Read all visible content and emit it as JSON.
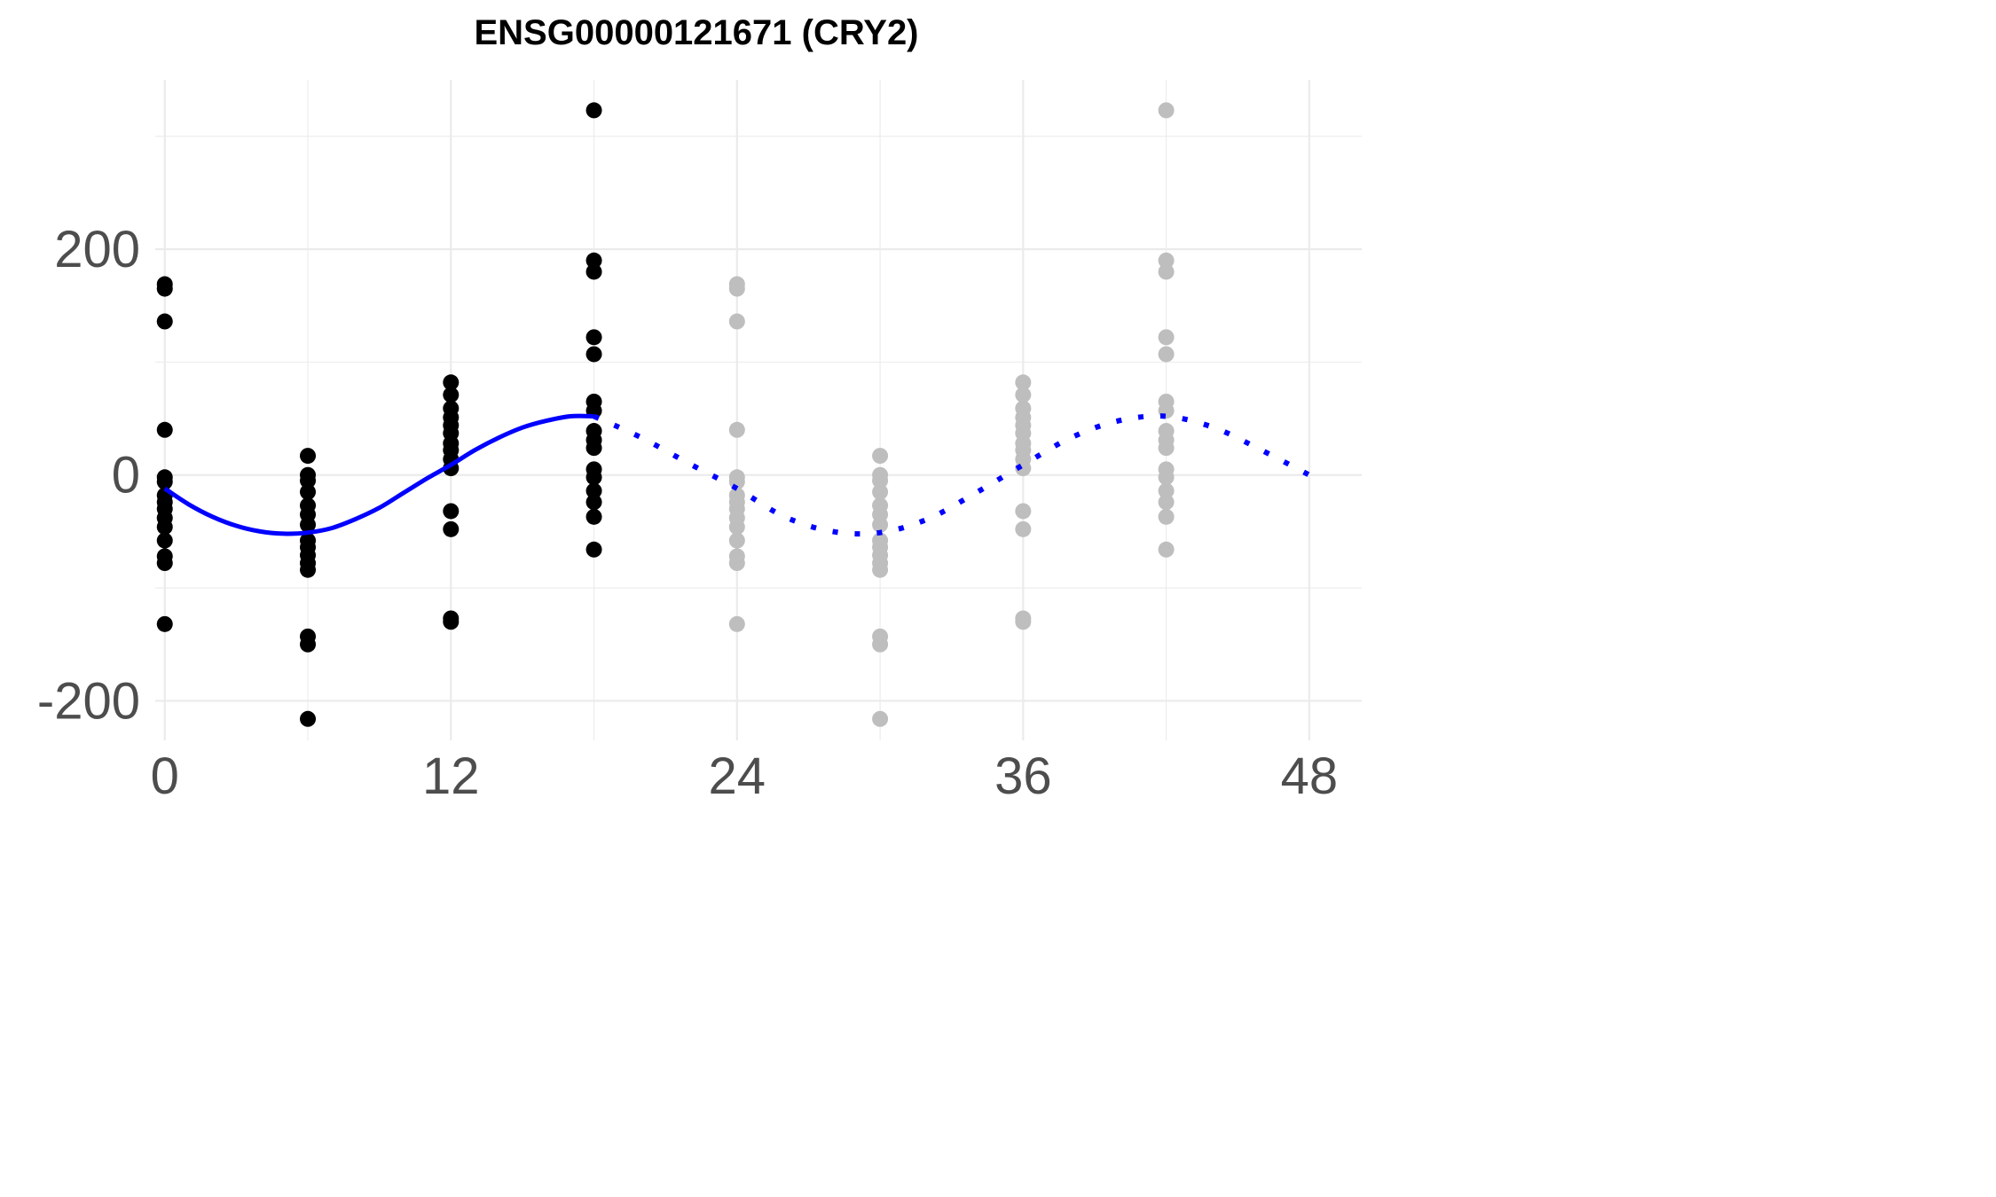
{
  "chart_data": {
    "type": "scatter",
    "title": "ENSG00000121671 (CRY2)",
    "xlabel": "",
    "ylabel": "",
    "xlim": [
      -0.4,
      50.2
    ],
    "ylim": [
      -235,
      350
    ],
    "x_ticks": [
      0,
      12,
      24,
      36,
      48
    ],
    "x_tick_labels": [
      "0",
      "12",
      "24",
      "36",
      "48"
    ],
    "y_ticks": [
      -200,
      0,
      200
    ],
    "y_tick_labels": [
      "-200",
      "0",
      "200"
    ],
    "x_minor_ticks": [
      6,
      18,
      30,
      42
    ],
    "y_minor_ticks": [
      -100,
      100,
      300
    ],
    "grid": true,
    "colors": {
      "observed": "#000000",
      "repeated": "#bebebe",
      "fit": "#0000ff"
    },
    "observed_points": [
      {
        "x": 0,
        "y": 169
      },
      {
        "x": 0,
        "y": 165
      },
      {
        "x": 0,
        "y": 136
      },
      {
        "x": 0,
        "y": 40
      },
      {
        "x": 0,
        "y": -2
      },
      {
        "x": 0,
        "y": -6
      },
      {
        "x": 0,
        "y": -18
      },
      {
        "x": 0,
        "y": -24
      },
      {
        "x": 0,
        "y": -30
      },
      {
        "x": 0,
        "y": -38
      },
      {
        "x": 0,
        "y": -46
      },
      {
        "x": 0,
        "y": -58
      },
      {
        "x": 0,
        "y": -72
      },
      {
        "x": 0,
        "y": -78
      },
      {
        "x": 0,
        "y": -132
      },
      {
        "x": 6,
        "y": 17
      },
      {
        "x": 6,
        "y": 0
      },
      {
        "x": 6,
        "y": -5
      },
      {
        "x": 6,
        "y": -15
      },
      {
        "x": 6,
        "y": -27
      },
      {
        "x": 6,
        "y": -35
      },
      {
        "x": 6,
        "y": -44
      },
      {
        "x": 6,
        "y": -58
      },
      {
        "x": 6,
        "y": -64
      },
      {
        "x": 6,
        "y": -71
      },
      {
        "x": 6,
        "y": -78
      },
      {
        "x": 6,
        "y": -84
      },
      {
        "x": 6,
        "y": -143
      },
      {
        "x": 6,
        "y": -150
      },
      {
        "x": 6,
        "y": -216
      },
      {
        "x": 12,
        "y": 82
      },
      {
        "x": 12,
        "y": 71
      },
      {
        "x": 12,
        "y": 59
      },
      {
        "x": 12,
        "y": 51
      },
      {
        "x": 12,
        "y": 44
      },
      {
        "x": 12,
        "y": 37
      },
      {
        "x": 12,
        "y": 28
      },
      {
        "x": 12,
        "y": 22
      },
      {
        "x": 12,
        "y": 14
      },
      {
        "x": 12,
        "y": 6
      },
      {
        "x": 12,
        "y": -32
      },
      {
        "x": 12,
        "y": -48
      },
      {
        "x": 12,
        "y": -127
      },
      {
        "x": 12,
        "y": -130
      },
      {
        "x": 18,
        "y": 323
      },
      {
        "x": 18,
        "y": 190
      },
      {
        "x": 18,
        "y": 180
      },
      {
        "x": 18,
        "y": 122
      },
      {
        "x": 18,
        "y": 107
      },
      {
        "x": 18,
        "y": 65
      },
      {
        "x": 18,
        "y": 57
      },
      {
        "x": 18,
        "y": 39
      },
      {
        "x": 18,
        "y": 31
      },
      {
        "x": 18,
        "y": 24
      },
      {
        "x": 18,
        "y": 5
      },
      {
        "x": 18,
        "y": -2
      },
      {
        "x": 18,
        "y": -14
      },
      {
        "x": 18,
        "y": -24
      },
      {
        "x": 18,
        "y": -37
      },
      {
        "x": 18,
        "y": -66
      }
    ],
    "repeated_points": [
      {
        "x": 24,
        "y": 169
      },
      {
        "x": 24,
        "y": 165
      },
      {
        "x": 24,
        "y": 136
      },
      {
        "x": 24,
        "y": 40
      },
      {
        "x": 24,
        "y": -2
      },
      {
        "x": 24,
        "y": -6
      },
      {
        "x": 24,
        "y": -18
      },
      {
        "x": 24,
        "y": -24
      },
      {
        "x": 24,
        "y": -30
      },
      {
        "x": 24,
        "y": -38
      },
      {
        "x": 24,
        "y": -46
      },
      {
        "x": 24,
        "y": -58
      },
      {
        "x": 24,
        "y": -72
      },
      {
        "x": 24,
        "y": -78
      },
      {
        "x": 24,
        "y": -132
      },
      {
        "x": 30,
        "y": 17
      },
      {
        "x": 30,
        "y": 0
      },
      {
        "x": 30,
        "y": -5
      },
      {
        "x": 30,
        "y": -15
      },
      {
        "x": 30,
        "y": -27
      },
      {
        "x": 30,
        "y": -35
      },
      {
        "x": 30,
        "y": -44
      },
      {
        "x": 30,
        "y": -58
      },
      {
        "x": 30,
        "y": -64
      },
      {
        "x": 30,
        "y": -71
      },
      {
        "x": 30,
        "y": -78
      },
      {
        "x": 30,
        "y": -84
      },
      {
        "x": 30,
        "y": -143
      },
      {
        "x": 30,
        "y": -150
      },
      {
        "x": 30,
        "y": -216
      },
      {
        "x": 36,
        "y": 82
      },
      {
        "x": 36,
        "y": 71
      },
      {
        "x": 36,
        "y": 59
      },
      {
        "x": 36,
        "y": 51
      },
      {
        "x": 36,
        "y": 44
      },
      {
        "x": 36,
        "y": 37
      },
      {
        "x": 36,
        "y": 28
      },
      {
        "x": 36,
        "y": 22
      },
      {
        "x": 36,
        "y": 14
      },
      {
        "x": 36,
        "y": 6
      },
      {
        "x": 36,
        "y": -32
      },
      {
        "x": 36,
        "y": -48
      },
      {
        "x": 36,
        "y": -127
      },
      {
        "x": 36,
        "y": -130
      },
      {
        "x": 42,
        "y": 323
      },
      {
        "x": 42,
        "y": 190
      },
      {
        "x": 42,
        "y": 180
      },
      {
        "x": 42,
        "y": 122
      },
      {
        "x": 42,
        "y": 107
      },
      {
        "x": 42,
        "y": 65
      },
      {
        "x": 42,
        "y": 57
      },
      {
        "x": 42,
        "y": 39
      },
      {
        "x": 42,
        "y": 31
      },
      {
        "x": 42,
        "y": 24
      },
      {
        "x": 42,
        "y": 5
      },
      {
        "x": 42,
        "y": -2
      },
      {
        "x": 42,
        "y": -14
      },
      {
        "x": 42,
        "y": -24
      },
      {
        "x": 42,
        "y": -37
      },
      {
        "x": 42,
        "y": -66
      }
    ],
    "fit_solid": [
      {
        "x": 0,
        "y": -12
      },
      {
        "x": 1,
        "y": -26
      },
      {
        "x": 2,
        "y": -37
      },
      {
        "x": 3,
        "y": -45
      },
      {
        "x": 4,
        "y": -50
      },
      {
        "x": 5,
        "y": -52
      },
      {
        "x": 6,
        "y": -51
      },
      {
        "x": 7,
        "y": -47
      },
      {
        "x": 8,
        "y": -39
      },
      {
        "x": 9,
        "y": -29
      },
      {
        "x": 10,
        "y": -16
      },
      {
        "x": 11,
        "y": -3
      },
      {
        "x": 12,
        "y": 9
      },
      {
        "x": 13,
        "y": 22
      },
      {
        "x": 14,
        "y": 33
      },
      {
        "x": 15,
        "y": 42
      },
      {
        "x": 16,
        "y": 48
      },
      {
        "x": 17,
        "y": 52
      },
      {
        "x": 18,
        "y": 52
      }
    ],
    "fit_dotted": [
      {
        "x": 18,
        "y": 52
      },
      {
        "x": 20,
        "y": 33
      },
      {
        "x": 22,
        "y": 10
      },
      {
        "x": 24,
        "y": -12
      },
      {
        "x": 26,
        "y": -37
      },
      {
        "x": 28,
        "y": -50
      },
      {
        "x": 30,
        "y": -51
      },
      {
        "x": 32,
        "y": -39
      },
      {
        "x": 34,
        "y": -16
      },
      {
        "x": 36,
        "y": 9
      },
      {
        "x": 38,
        "y": 33
      },
      {
        "x": 40,
        "y": 48
      },
      {
        "x": 42,
        "y": 52
      },
      {
        "x": 44,
        "y": 42
      },
      {
        "x": 46,
        "y": 22
      },
      {
        "x": 48,
        "y": 0
      }
    ]
  }
}
